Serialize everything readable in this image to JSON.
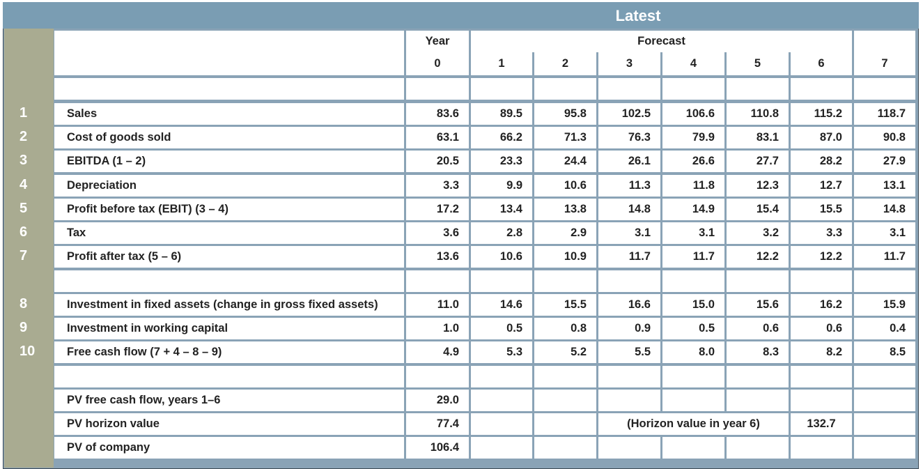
{
  "banner_title": "Latest",
  "header": {
    "year_label": "Year",
    "forecast_label": "Forecast",
    "years": [
      "0",
      "1",
      "2",
      "3",
      "4",
      "5",
      "6",
      "7"
    ]
  },
  "rows": [
    {
      "num": "1",
      "label": "Sales",
      "values": [
        "83.6",
        "89.5",
        "95.8",
        "102.5",
        "106.6",
        "110.8",
        "115.2",
        "118.7"
      ]
    },
    {
      "num": "2",
      "label": "Cost of goods sold",
      "values": [
        "63.1",
        "66.2",
        "71.3",
        "76.3",
        "79.9",
        "83.1",
        "87.0",
        "90.8"
      ]
    },
    {
      "num": "3",
      "label": "EBITDA (1 – 2)",
      "values": [
        "20.5",
        "23.3",
        "24.4",
        "26.1",
        "26.6",
        "27.7",
        "28.2",
        "27.9"
      ]
    },
    {
      "num": "4",
      "label": "Depreciation",
      "values": [
        "3.3",
        "9.9",
        "10.6",
        "11.3",
        "11.8",
        "12.3",
        "12.7",
        "13.1"
      ]
    },
    {
      "num": "5",
      "label": "Profit before tax (EBIT) (3 – 4)",
      "values": [
        "17.2",
        "13.4",
        "13.8",
        "14.8",
        "14.9",
        "15.4",
        "15.5",
        "14.8"
      ]
    },
    {
      "num": "6",
      "label": "Tax",
      "values": [
        "3.6",
        "2.8",
        "2.9",
        "3.1",
        "3.1",
        "3.2",
        "3.3",
        "3.1"
      ]
    },
    {
      "num": "7",
      "label": "Profit after tax (5 – 6)",
      "values": [
        "13.6",
        "10.6",
        "10.9",
        "11.7",
        "11.7",
        "12.2",
        "12.2",
        "11.7"
      ]
    },
    {
      "num": "8",
      "label": "Investment in fixed assets (change in gross fixed assets)",
      "values": [
        "11.0",
        "14.6",
        "15.5",
        "16.6",
        "15.0",
        "15.6",
        "16.2",
        "15.9"
      ]
    },
    {
      "num": "9",
      "label": "Investment in working capital",
      "values": [
        "1.0",
        "0.5",
        "0.8",
        "0.9",
        "0.5",
        "0.6",
        "0.6",
        "0.4"
      ]
    },
    {
      "num": "10",
      "label": "Free cash flow (7 + 4 – 8 – 9)",
      "values": [
        "4.9",
        "5.3",
        "5.2",
        "5.5",
        "8.0",
        "8.3",
        "8.2",
        "8.5"
      ]
    }
  ],
  "valuation": {
    "pv_fcf_label": "PV free cash flow, years 1–6",
    "pv_fcf_value": "29.0",
    "pv_horizon_label": "PV horizon value",
    "pv_horizon_value": "77.4",
    "horizon_note": "(Horizon value in year 6)",
    "horizon_value_year6": "132.7",
    "pv_company_label": "PV of company",
    "pv_company_value": "106.4"
  }
}
